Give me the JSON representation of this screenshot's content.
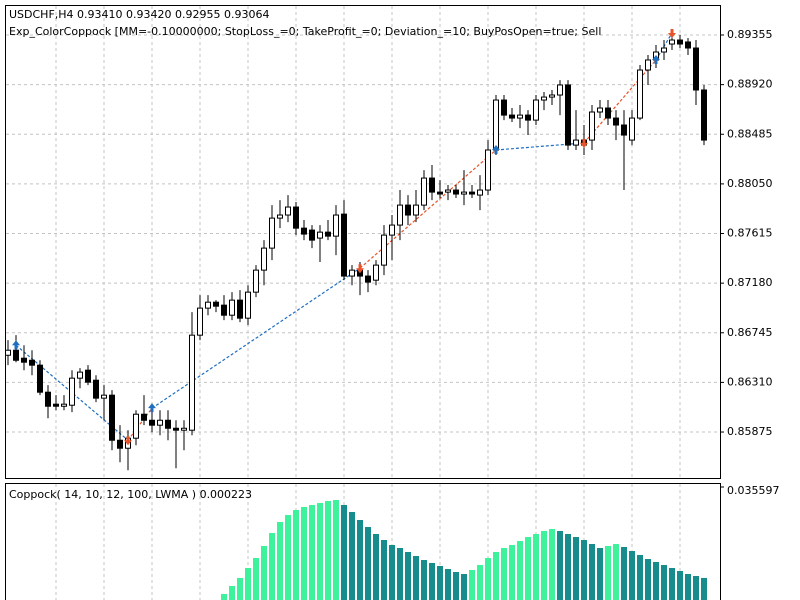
{
  "chart_data": [
    {
      "type": "candlestick",
      "title": "USDCHF,H4  0.93410 0.93420 0.92955 0.93064",
      "subtitle": "Exp_ColorCoppock [MM=-0.10000000; StopLoss_=0; TakeProfit_=0; Deviation_=10; BuyPosOpen=true; Sell",
      "ylim": [
        0.85472,
        0.89618
      ],
      "yticks": [
        0.89355,
        {
          "value": 0.8892,
          "label": "0.88920"
        },
        0.88485,
        {
          "value": 0.8805,
          "label": "0.88050"
        },
        0.87615,
        {
          "value": 0.8718,
          "label": "0.87180"
        },
        0.86745,
        {
          "value": 0.8631,
          "label": "0.86310"
        },
        0.85875
      ],
      "grid": true,
      "up_color": "#ffffff",
      "down_color": "#000000",
      "buy_color": "#1f6fc0",
      "sell_color": "#e8542a",
      "ohlc": [
        [
          0.86548,
          0.8668,
          0.86461,
          0.86592
        ],
        [
          0.86592,
          0.86724,
          0.86487,
          0.86504
        ],
        [
          0.86522,
          0.86636,
          0.86417,
          0.86487
        ],
        [
          0.86504,
          0.86592,
          0.86373,
          0.86461
        ],
        [
          0.86461,
          0.86504,
          0.86198,
          0.86224
        ],
        [
          0.86224,
          0.86286,
          0.85996,
          0.86101
        ],
        [
          0.86119,
          0.86198,
          0.86066,
          0.86101
        ],
        [
          0.86101,
          0.86198,
          0.86066,
          0.86119
        ],
        [
          0.8611,
          0.86417,
          0.86049,
          0.86347
        ],
        [
          0.86347,
          0.86435,
          0.86259,
          0.864
        ],
        [
          0.86417,
          0.86461,
          0.86286,
          0.86312
        ],
        [
          0.86329,
          0.86373,
          0.86137,
          0.86172
        ],
        [
          0.86172,
          0.86286,
          0.85978,
          0.86198
        ],
        [
          0.86198,
          0.86242,
          0.85715,
          0.85803
        ],
        [
          0.85803,
          0.85935,
          0.8561,
          0.85733
        ],
        [
          0.85733,
          0.85891,
          0.8554,
          0.85821
        ],
        [
          0.85821,
          0.86066,
          0.85759,
          0.86031
        ],
        [
          0.86031,
          0.86198,
          0.85935,
          0.85978
        ],
        [
          0.85978,
          0.8611,
          0.85873,
          0.85935
        ],
        [
          0.85935,
          0.86066,
          0.85847,
          0.85978
        ],
        [
          0.85978,
          0.86066,
          0.85803,
          0.85908
        ],
        [
          0.85908,
          0.85978,
          0.85558,
          0.85891
        ],
        [
          0.85891,
          0.85978,
          0.85715,
          0.85908
        ],
        [
          0.85891,
          0.86926,
          0.85847,
          0.86724
        ],
        [
          0.86724,
          0.87075,
          0.8668,
          0.86961
        ],
        [
          0.86961,
          0.87075,
          0.86899,
          0.87013
        ],
        [
          0.87013,
          0.87031,
          0.86926,
          0.86978
        ],
        [
          0.86987,
          0.87075,
          0.86856,
          0.86899
        ],
        [
          0.86899,
          0.87101,
          0.86856,
          0.87031
        ],
        [
          0.87031,
          0.87119,
          0.86838,
          0.86873
        ],
        [
          0.86873,
          0.87162,
          0.86812,
          0.87101
        ],
        [
          0.87101,
          0.87338,
          0.87057,
          0.87294
        ],
        [
          0.87294,
          0.87557,
          0.87162,
          0.87487
        ],
        [
          0.87487,
          0.87864,
          0.87382,
          0.8775
        ],
        [
          0.8775,
          0.87908,
          0.87662,
          0.87777
        ],
        [
          0.87777,
          0.87952,
          0.87715,
          0.87847
        ],
        [
          0.87847,
          0.87891,
          0.87601,
          0.87662
        ],
        [
          0.87662,
          0.87733,
          0.87557,
          0.8761
        ],
        [
          0.87645,
          0.87689,
          0.87487,
          0.87557
        ],
        [
          0.87575,
          0.87689,
          0.87365,
          0.87627
        ],
        [
          0.87627,
          0.87733,
          0.87557,
          0.87592
        ],
        [
          0.87592,
          0.87864,
          0.87426,
          0.87777
        ],
        [
          0.87785,
          0.87908,
          0.87206,
          0.87242
        ],
        [
          0.87242,
          0.87338,
          0.87162,
          0.87294
        ],
        [
          0.87294,
          0.87365,
          0.87075,
          0.87242
        ],
        [
          0.87242,
          0.87294,
          0.87101,
          0.87189
        ],
        [
          0.87206,
          0.87382,
          0.87162,
          0.87338
        ],
        [
          0.87338,
          0.87689,
          0.8725,
          0.87601
        ],
        [
          0.87601,
          0.87777,
          0.87382,
          0.87689
        ],
        [
          0.87689,
          0.87996,
          0.87557,
          0.87864
        ],
        [
          0.87864,
          0.87952,
          0.87689,
          0.87777
        ],
        [
          0.87777,
          0.87996,
          0.87715,
          0.87864
        ],
        [
          0.87864,
          0.88171,
          0.8782,
          0.88101
        ],
        [
          0.88101,
          0.88215,
          0.87908,
          0.87978
        ],
        [
          0.87978,
          0.88083,
          0.87926,
          0.87961
        ],
        [
          0.87978,
          0.8804,
          0.87908,
          0.87996
        ],
        [
          0.87996,
          0.8804,
          0.87926,
          0.87961
        ],
        [
          0.87961,
          0.88171,
          0.87864,
          0.87978
        ],
        [
          0.87978,
          0.8804,
          0.87926,
          0.87961
        ],
        [
          0.87952,
          0.88127,
          0.8782,
          0.87996
        ],
        [
          0.87996,
          0.88434,
          0.87952,
          0.88347
        ],
        [
          0.88347,
          0.88829,
          0.88303,
          0.88785
        ],
        [
          0.88785,
          0.88829,
          0.88609,
          0.88653
        ],
        [
          0.88653,
          0.88715,
          0.88592,
          0.88627
        ],
        [
          0.88627,
          0.88741,
          0.88539,
          0.88653
        ],
        [
          0.88653,
          0.88697,
          0.88478,
          0.88609
        ],
        [
          0.88609,
          0.88829,
          0.88566,
          0.88785
        ],
        [
          0.88785,
          0.88855,
          0.88697,
          0.88811
        ],
        [
          0.88811,
          0.88873,
          0.88741,
          0.88829
        ],
        [
          0.88829,
          0.8896,
          0.88653,
          0.88917
        ],
        [
          0.88917,
          0.8896,
          0.88347,
          0.8839
        ],
        [
          0.8839,
          0.88697,
          0.88347,
          0.88434
        ],
        [
          0.88434,
          0.88566,
          0.88303,
          0.8839
        ],
        [
          0.88434,
          0.88741,
          0.88347,
          0.8868
        ],
        [
          0.8868,
          0.88785,
          0.88627,
          0.88715
        ],
        [
          0.88715,
          0.88785,
          0.88566,
          0.88627
        ],
        [
          0.88627,
          0.88697,
          0.88434,
          0.88566
        ],
        [
          0.88566,
          0.88697,
          0.87996,
          0.88478
        ],
        [
          0.88434,
          0.88697,
          0.8839,
          0.88627
        ],
        [
          0.88627,
          0.89092,
          0.88609,
          0.89048
        ],
        [
          0.89048,
          0.8918,
          0.88917,
          0.89136
        ],
        [
          0.89136,
          0.89267,
          0.89066,
          0.89206
        ],
        [
          0.89206,
          0.89311,
          0.89136,
          0.89241
        ],
        [
          0.89276,
          0.89399,
          0.89224,
          0.89311
        ],
        [
          0.89311,
          0.89355,
          0.89241,
          0.89276
        ],
        [
          0.89294,
          0.89329,
          0.8918,
          0.89241
        ],
        [
          0.89241,
          0.89311,
          0.88741,
          0.88873
        ],
        [
          0.88873,
          0.88917,
          0.8839,
          0.88434
        ]
      ],
      "signals": [
        {
          "bar": 1,
          "price": 0.86636,
          "type": "buy"
        },
        {
          "bar": 15,
          "price": 0.85803,
          "type": "sell"
        },
        {
          "bar": 18,
          "price": 0.86084,
          "type": "buy"
        },
        {
          "bar": 44,
          "price": 0.87311,
          "type": "sell"
        },
        {
          "bar": 61,
          "price": 0.88347,
          "type": "buy"
        },
        {
          "bar": 72,
          "price": 0.88409,
          "type": "sell"
        },
        {
          "bar": 81,
          "price": 0.89136,
          "type": "buy"
        },
        {
          "bar": 83,
          "price": 0.89373,
          "type": "sell"
        }
      ]
    },
    {
      "type": "bar",
      "title": "Coppock( 14, 10, 12, 100, LWMA ) 0.000223",
      "ylim": [
        -0.00836,
        0.035597
      ],
      "yticks": [
        0.035597
      ],
      "up_color": "#3ef29c",
      "down_color": "#168c8c",
      "values": [
        null,
        null,
        null,
        null,
        null,
        null,
        null,
        null,
        null,
        null,
        null,
        null,
        null,
        null,
        null,
        null,
        null,
        null,
        null,
        null,
        null,
        null,
        null,
        null,
        null,
        null,
        null,
        -0.00603,
        -0.00291,
        0.0002,
        0.00409,
        0.00798,
        0.01265,
        0.0177,
        0.02198,
        0.0247,
        0.02665,
        0.02782,
        0.0286,
        0.02937,
        0.03015,
        0.03054,
        0.0286,
        0.02587,
        0.02276,
        0.02004,
        0.01731,
        0.01498,
        0.01304,
        0.01187,
        0.01031,
        0.00876,
        0.0072,
        0.00603,
        0.00487,
        0.0037,
        0.00253,
        0.00175,
        0.00331,
        0.00526,
        0.00798,
        0.01031,
        0.01187,
        0.01304,
        0.01459,
        0.01615,
        0.01731,
        0.01848,
        0.01926,
        0.01848,
        0.01731,
        0.01615,
        0.01498,
        0.01342,
        0.01187,
        0.01265,
        0.01342,
        0.01226,
        0.0107,
        0.00914,
        0.00759,
        0.00642,
        0.00526,
        0.00409,
        0.00292,
        0.00175,
        0.00098,
        0.000223
      ]
    }
  ]
}
